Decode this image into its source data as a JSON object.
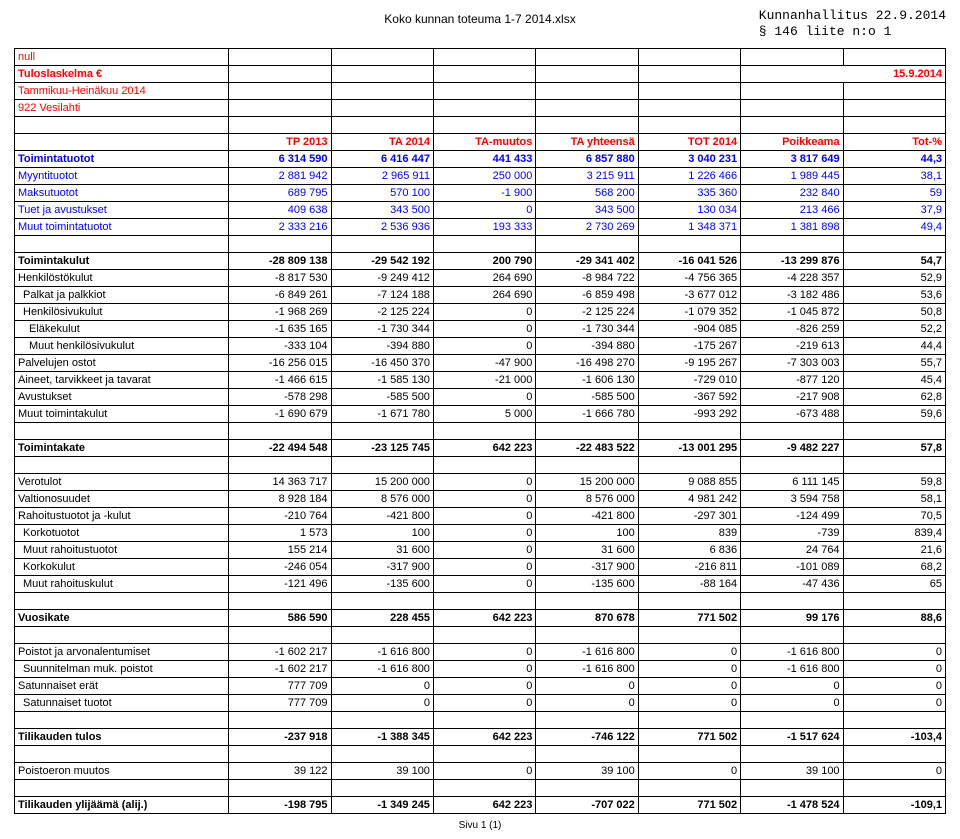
{
  "header": {
    "center_title": "Koko kunnan toteuma 1-7 2014.xlsx",
    "right_line1": "Kunnanhallitus 22.9.2014",
    "right_line2": "§ 146 liite n:o 1"
  },
  "title_rows": {
    "r0": "null",
    "r1_left": "Tuloslaskelma €",
    "r1_right": "15.9.2014",
    "r2": "Tammikuu-Heinäkuu 2014",
    "r3": "922 Vesilahti"
  },
  "columns": [
    "TP 2013",
    "TA 2014",
    "TA-muutos",
    "TA yhteensä",
    "TOT 2014",
    "Poikkeama",
    "Tot-%"
  ],
  "rows": [
    {
      "label": "Toimintatuotot",
      "style": "blue bold",
      "vals": [
        "6 314 590",
        "6 416 447",
        "441 433",
        "6 857 880",
        "3 040 231",
        "3 817 649",
        "44,3"
      ]
    },
    {
      "label": "Myyntituotot",
      "indent": 0,
      "style": "blue",
      "vals": [
        "2 881 942",
        "2 965 911",
        "250 000",
        "3 215 911",
        "1 226 466",
        "1 989 445",
        "38,1"
      ]
    },
    {
      "label": "Maksutuotot",
      "indent": 0,
      "style": "blue",
      "vals": [
        "689 795",
        "570 100",
        "-1 900",
        "568 200",
        "335 360",
        "232 840",
        "59"
      ]
    },
    {
      "label": "Tuet ja avustukset",
      "indent": 0,
      "style": "blue",
      "vals": [
        "409 638",
        "343 500",
        "0",
        "343 500",
        "130 034",
        "213 466",
        "37,9"
      ]
    },
    {
      "label": "Muut toimintatuotot",
      "indent": 0,
      "style": "blue",
      "vals": [
        "2 333 216",
        "2 536 936",
        "193 333",
        "2 730 269",
        "1 348 371",
        "1 381 898",
        "49,4"
      ]
    },
    {
      "gap": true
    },
    {
      "label": "Toimintakulut",
      "style": "bold",
      "vals": [
        "-28 809 138",
        "-29 542 192",
        "200 790",
        "-29 341 402",
        "-16 041 526",
        "-13 299 876",
        "54,7"
      ]
    },
    {
      "label": "Henkilöstökulut",
      "indent": 0,
      "vals": [
        "-8 817 530",
        "-9 249 412",
        "264 690",
        "-8 984 722",
        "-4 756 365",
        "-4 228 357",
        "52,9"
      ]
    },
    {
      "label": "Palkat ja palkkiot",
      "indent": 1,
      "vals": [
        "-6 849 261",
        "-7 124 188",
        "264 690",
        "-6 859 498",
        "-3 677 012",
        "-3 182 486",
        "53,6"
      ]
    },
    {
      "label": "Henkilösivukulut",
      "indent": 1,
      "vals": [
        "-1 968 269",
        "-2 125 224",
        "0",
        "-2 125 224",
        "-1 079 352",
        "-1 045 872",
        "50,8"
      ]
    },
    {
      "label": "Eläkekulut",
      "indent": 2,
      "vals": [
        "-1 635 165",
        "-1 730 344",
        "0",
        "-1 730 344",
        "-904 085",
        "-826 259",
        "52,2"
      ]
    },
    {
      "label": "Muut henkilösivukulut",
      "indent": 2,
      "vals": [
        "-333 104",
        "-394 880",
        "0",
        "-394 880",
        "-175 267",
        "-219 613",
        "44,4"
      ]
    },
    {
      "label": "Palvelujen ostot",
      "indent": 0,
      "vals": [
        "-16 256 015",
        "-16 450 370",
        "-47 900",
        "-16 498 270",
        "-9 195 267",
        "-7 303 003",
        "55,7"
      ]
    },
    {
      "label": "Aineet, tarvikkeet ja tavarat",
      "indent": 0,
      "vals": [
        "-1 466 615",
        "-1 585 130",
        "-21 000",
        "-1 606 130",
        "-729 010",
        "-877 120",
        "45,4"
      ]
    },
    {
      "label": "Avustukset",
      "indent": 0,
      "vals": [
        "-578 298",
        "-585 500",
        "0",
        "-585 500",
        "-367 592",
        "-217 908",
        "62,8"
      ]
    },
    {
      "label": "Muut toimintakulut",
      "indent": 0,
      "vals": [
        "-1 690 679",
        "-1 671 780",
        "5 000",
        "-1 666 780",
        "-993 292",
        "-673 488",
        "59,6"
      ]
    },
    {
      "gap": true
    },
    {
      "label": "Toimintakate",
      "style": "bold",
      "vals": [
        "-22 494 548",
        "-23 125 745",
        "642 223",
        "-22 483 522",
        "-13 001 295",
        "-9 482 227",
        "57,8"
      ]
    },
    {
      "gap": true
    },
    {
      "label": "Verotulot",
      "indent": 0,
      "vals": [
        "14 363 717",
        "15 200 000",
        "0",
        "15 200 000",
        "9 088 855",
        "6 111 145",
        "59,8"
      ]
    },
    {
      "label": "Valtionosuudet",
      "indent": 0,
      "vals": [
        "8 928 184",
        "8 576 000",
        "0",
        "8 576 000",
        "4 981 242",
        "3 594 758",
        "58,1"
      ]
    },
    {
      "label": "Rahoitustuotot ja -kulut",
      "indent": 0,
      "vals": [
        "-210 764",
        "-421 800",
        "0",
        "-421 800",
        "-297 301",
        "-124 499",
        "70,5"
      ]
    },
    {
      "label": "Korkotuotot",
      "indent": 1,
      "vals": [
        "1 573",
        "100",
        "0",
        "100",
        "839",
        "-739",
        "839,4"
      ]
    },
    {
      "label": "Muut rahoitustuotot",
      "indent": 1,
      "vals": [
        "155 214",
        "31 600",
        "0",
        "31 600",
        "6 836",
        "24 764",
        "21,6"
      ]
    },
    {
      "label": "Korkokulut",
      "indent": 1,
      "vals": [
        "-246 054",
        "-317 900",
        "0",
        "-317 900",
        "-216 811",
        "-101 089",
        "68,2"
      ]
    },
    {
      "label": "Muut rahoituskulut",
      "indent": 1,
      "vals": [
        "-121 496",
        "-135 600",
        "0",
        "-135 600",
        "-88 164",
        "-47 436",
        "65"
      ]
    },
    {
      "gap": true
    },
    {
      "label": "Vuosikate",
      "style": "bold",
      "vals": [
        "586 590",
        "228 455",
        "642 223",
        "870 678",
        "771 502",
        "99 176",
        "88,6"
      ]
    },
    {
      "gap": true
    },
    {
      "label": "Poistot ja arvonalentumiset",
      "indent": 0,
      "vals": [
        "-1 602 217",
        "-1 616 800",
        "0",
        "-1 616 800",
        "0",
        "-1 616 800",
        "0"
      ]
    },
    {
      "label": "Suunnitelman muk. poistot",
      "indent": 1,
      "vals": [
        "-1 602 217",
        "-1 616 800",
        "0",
        "-1 616 800",
        "0",
        "-1 616 800",
        "0"
      ]
    },
    {
      "label": "Satunnaiset erät",
      "indent": 0,
      "vals": [
        "777 709",
        "0",
        "0",
        "0",
        "0",
        "0",
        "0"
      ]
    },
    {
      "label": "Satunnaiset tuotot",
      "indent": 1,
      "vals": [
        "777 709",
        "0",
        "0",
        "0",
        "0",
        "0",
        "0"
      ]
    },
    {
      "gap": true
    },
    {
      "label": "Tilikauden tulos",
      "style": "bold",
      "vals": [
        "-237 918",
        "-1 388 345",
        "642 223",
        "-746 122",
        "771 502",
        "-1 517 624",
        "-103,4"
      ]
    },
    {
      "gap": true
    },
    {
      "label": "Poistoeron muutos",
      "indent": 0,
      "vals": [
        "39 122",
        "39 100",
        "0",
        "39 100",
        "0",
        "39 100",
        "0"
      ]
    },
    {
      "gap": true
    },
    {
      "label": "Tilikauden ylijäämä (alij.)",
      "style": "bold",
      "vals": [
        "-198 795",
        "-1 349 245",
        "642 223",
        "-707 022",
        "771 502",
        "-1 478 524",
        "-109,1"
      ]
    }
  ],
  "footer": "Sivu 1 (1)",
  "colors": {
    "red": "#ff0000",
    "blue": "#0000ff",
    "black": "#000000"
  }
}
